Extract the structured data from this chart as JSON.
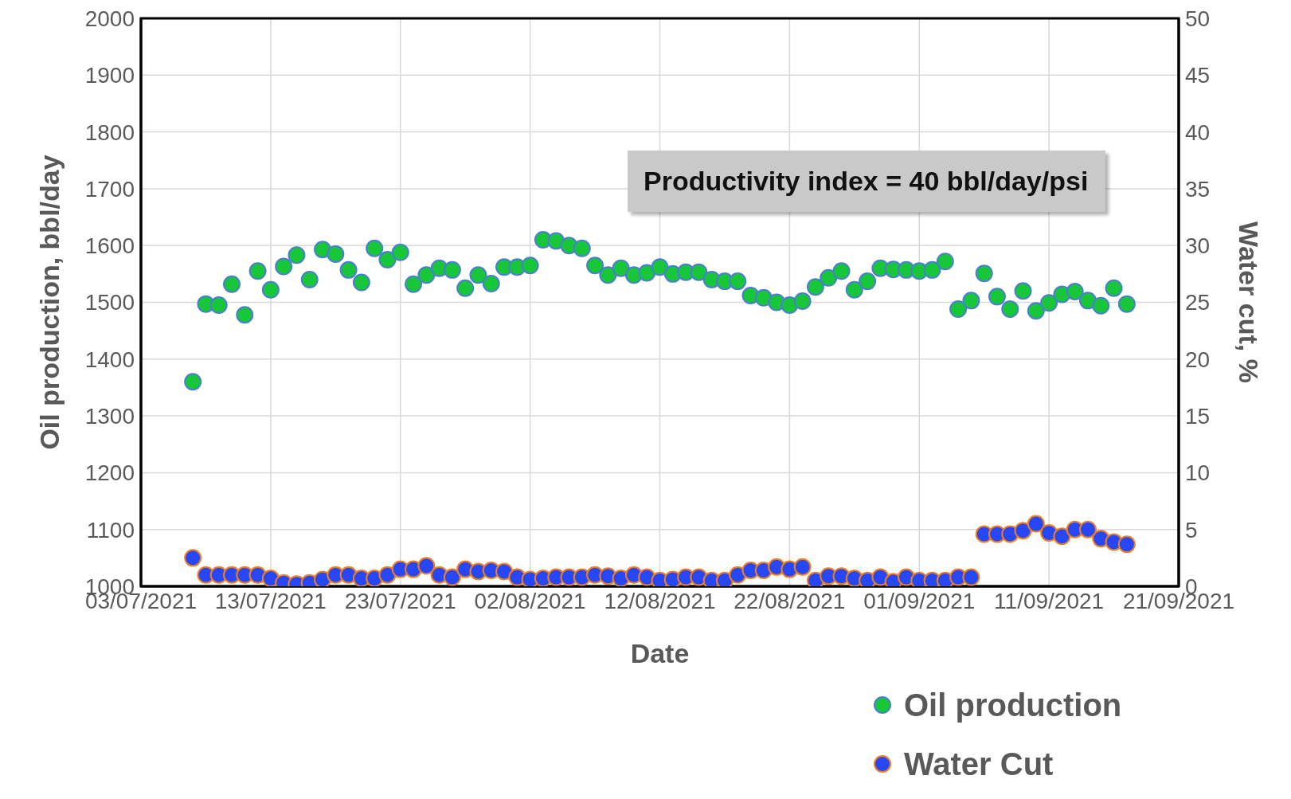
{
  "chart_data": {
    "type": "scatter",
    "xlabel": "Date",
    "ylabel": "Oil production, bbl/day",
    "y2label": "Water cut, %",
    "annotations": [
      "Productivity index = 40 bbl/day/psi"
    ],
    "x": [
      "2021-07-07",
      "2021-07-08",
      "2021-07-09",
      "2021-07-10",
      "2021-07-11",
      "2021-07-12",
      "2021-07-13",
      "2021-07-14",
      "2021-07-15",
      "2021-07-16",
      "2021-07-17",
      "2021-07-18",
      "2021-07-19",
      "2021-07-20",
      "2021-07-21",
      "2021-07-22",
      "2021-07-23",
      "2021-07-24",
      "2021-07-25",
      "2021-07-26",
      "2021-07-27",
      "2021-07-28",
      "2021-07-29",
      "2021-07-30",
      "2021-07-31",
      "2021-08-01",
      "2021-08-02",
      "2021-08-03",
      "2021-08-04",
      "2021-08-05",
      "2021-08-06",
      "2021-08-07",
      "2021-08-08",
      "2021-08-09",
      "2021-08-10",
      "2021-08-11",
      "2021-08-12",
      "2021-08-13",
      "2021-08-14",
      "2021-08-15",
      "2021-08-16",
      "2021-08-17",
      "2021-08-18",
      "2021-08-19",
      "2021-08-20",
      "2021-08-21",
      "2021-08-22",
      "2021-08-23",
      "2021-08-24",
      "2021-08-25",
      "2021-08-26",
      "2021-08-27",
      "2021-08-28",
      "2021-08-29",
      "2021-08-30",
      "2021-08-31",
      "2021-09-01",
      "2021-09-02",
      "2021-09-03",
      "2021-09-04",
      "2021-09-05",
      "2021-09-06",
      "2021-09-07",
      "2021-09-08",
      "2021-09-09",
      "2021-09-10",
      "2021-09-11",
      "2021-09-12",
      "2021-09-13",
      "2021-09-14",
      "2021-09-15",
      "2021-09-16",
      "2021-09-17"
    ],
    "series": [
      {
        "name": "Oil production",
        "color": "#18c63a",
        "values": [
          1360,
          1497,
          1495,
          1532,
          1478,
          1555,
          1522,
          1563,
          1583,
          1540,
          1593,
          1585,
          1557,
          1535,
          1595,
          1575,
          1588,
          1532,
          1548,
          1560,
          1557,
          1525,
          1548,
          1533,
          1562,
          1562,
          1565,
          1610,
          1608,
          1600,
          1595,
          1565,
          1548,
          1560,
          1548,
          1552,
          1562,
          1550,
          1553,
          1553,
          1540,
          1537,
          1537,
          1512,
          1508,
          1500,
          1495,
          1502,
          1527,
          1543,
          1555,
          1522,
          1537,
          1560,
          1558,
          1557,
          1555,
          1557,
          1572,
          1488,
          1503,
          1551,
          1510,
          1488,
          1520,
          1485,
          1499,
          1514,
          1519,
          1503,
          1494,
          1525,
          1497
        ]
      },
      {
        "name": "Water Cut",
        "color": "#2747f5",
        "axis": "y2",
        "values": [
          2.5,
          1.0,
          1.0,
          1.0,
          1.0,
          1.0,
          0.7,
          0.3,
          0.2,
          0.3,
          0.6,
          1.0,
          1.0,
          0.7,
          0.7,
          1.0,
          1.5,
          1.5,
          1.8,
          1.0,
          0.8,
          1.5,
          1.3,
          1.4,
          1.3,
          0.8,
          0.6,
          0.7,
          0.8,
          0.8,
          0.8,
          1.0,
          0.9,
          0.7,
          1.0,
          0.8,
          0.5,
          0.6,
          0.8,
          0.8,
          0.5,
          0.5,
          1.0,
          1.4,
          1.4,
          1.7,
          1.5,
          1.7,
          0.5,
          0.9,
          0.9,
          0.7,
          0.5,
          0.8,
          0.4,
          0.8,
          0.5,
          0.5,
          0.5,
          0.8,
          0.8,
          4.6,
          4.6,
          4.6,
          4.9,
          5.5,
          4.7,
          4.4,
          5.0,
          5.0,
          4.2,
          3.9,
          3.7
        ]
      }
    ],
    "xlim": [
      "2021-07-03",
      "2021-09-21"
    ],
    "xticks": [
      {
        "value": "2021-07-03",
        "label": "03/07/2021"
      },
      {
        "value": "2021-07-13",
        "label": "13/07/2021"
      },
      {
        "value": "2021-07-23",
        "label": "23/07/2021"
      },
      {
        "value": "2021-08-02",
        "label": "02/08/2021"
      },
      {
        "value": "2021-08-12",
        "label": "12/08/2021"
      },
      {
        "value": "2021-08-22",
        "label": "22/08/2021"
      },
      {
        "value": "2021-09-01",
        "label": "01/09/2021"
      },
      {
        "value": "2021-09-11",
        "label": "11/09/2021"
      },
      {
        "value": "2021-09-21",
        "label": "21/09/2021"
      }
    ],
    "ylim": [
      1000,
      2000
    ],
    "yticks": [
      1000,
      1100,
      1200,
      1300,
      1400,
      1500,
      1600,
      1700,
      1800,
      1900,
      2000
    ],
    "y2lim": [
      0,
      50
    ],
    "y2ticks": [
      0,
      5,
      10,
      15,
      20,
      25,
      30,
      35,
      40,
      45,
      50
    ],
    "grid": true,
    "legend": "bottom right",
    "marker": "circle"
  }
}
